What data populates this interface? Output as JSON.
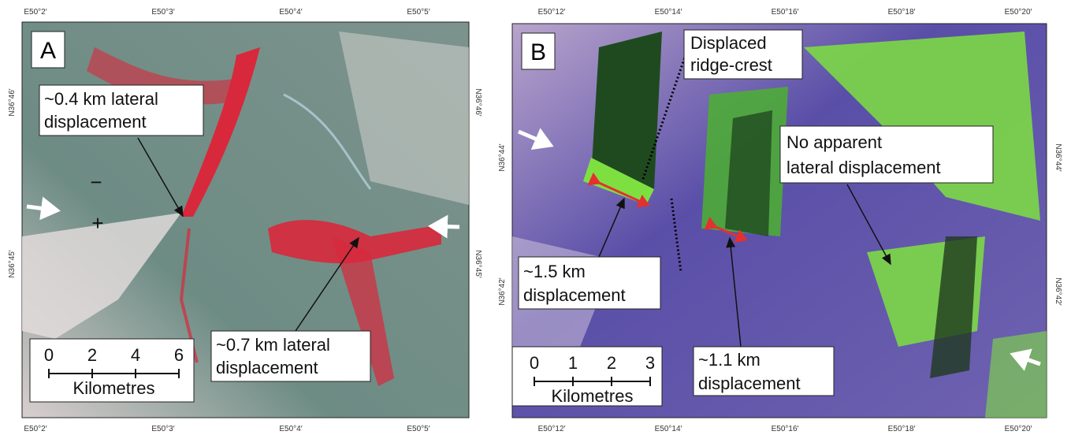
{
  "panels": [
    {
      "label": "A",
      "top_ticks": [
        "E50°2′",
        "E50°3′",
        "E50°4′",
        "E50°5′"
      ],
      "bottom_ticks": [
        "E50°2′",
        "E50°3′",
        "E50°4′",
        "E50°5′"
      ],
      "left_ticks": [
        "N36°46′",
        "N36°45′"
      ],
      "right_ticks": [
        "N36°46′",
        "N36°45′"
      ],
      "annotations": [
        {
          "lines": [
            "~0.4 km lateral",
            "displacement"
          ]
        },
        {
          "lines": [
            "~0.7 km lateral",
            "displacement"
          ]
        }
      ],
      "signs": [
        "−",
        "+"
      ],
      "scale": {
        "ticks": [
          0,
          2,
          4,
          6
        ],
        "unit": "Kilometres"
      }
    },
    {
      "label": "B",
      "top_ticks": [
        "E50°12′",
        "E50°14′",
        "E50°16′",
        "E50°18′",
        "E50°20′"
      ],
      "bottom_ticks": [
        "E50°12′",
        "E50°14′",
        "E50°16′",
        "E50°18′",
        "E50°20′"
      ],
      "left_ticks": [
        "N36°44′",
        "N36°42′"
      ],
      "right_ticks": [
        "N36°44′",
        "N36°42′"
      ],
      "annotations": [
        {
          "lines": [
            "Displaced",
            "ridge-crest"
          ]
        },
        {
          "lines": [
            "No apparent",
            "lateral displacement"
          ]
        },
        {
          "lines": [
            "~1.5 km",
            "displacement"
          ]
        },
        {
          "lines": [
            "~1.1 km",
            "displacement"
          ]
        }
      ],
      "scale": {
        "ticks": [
          0,
          1,
          2,
          3
        ],
        "unit": "Kilometres"
      }
    }
  ]
}
